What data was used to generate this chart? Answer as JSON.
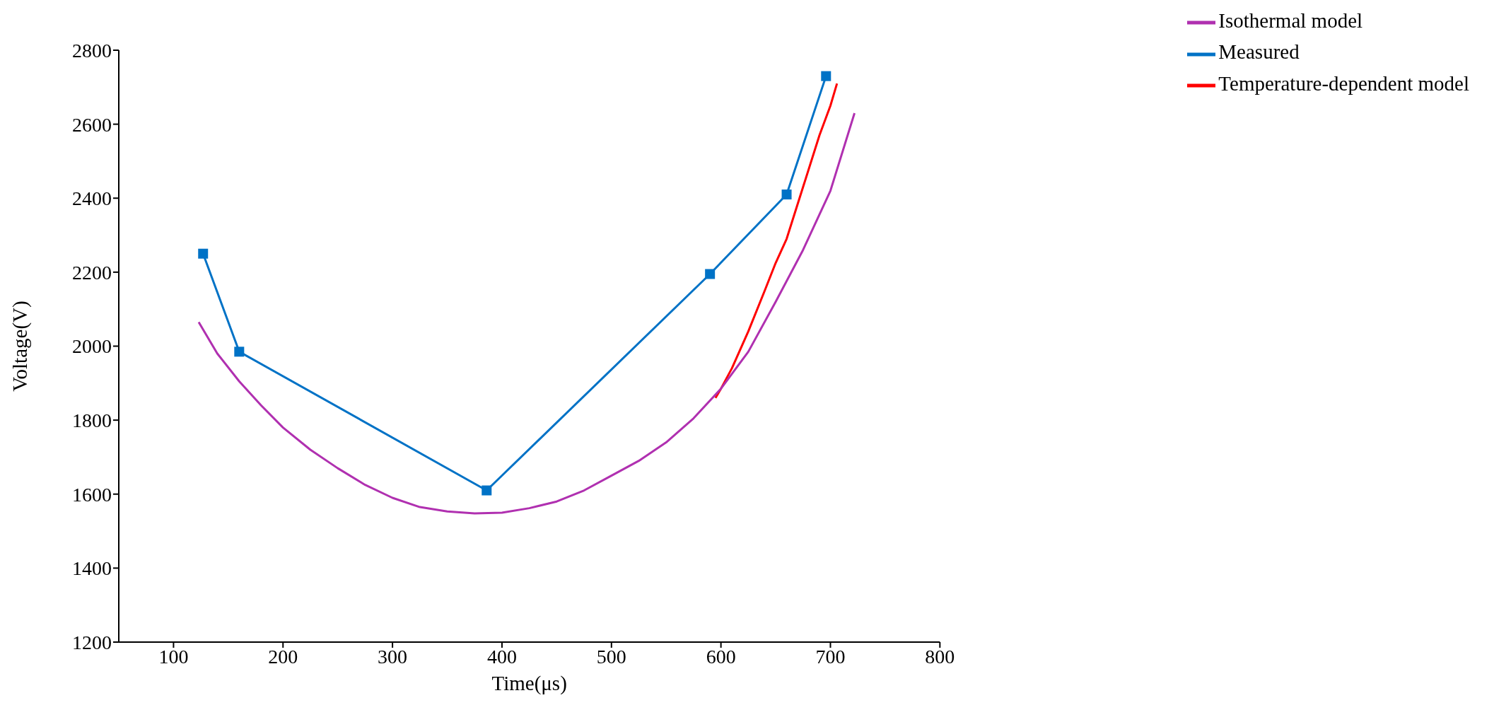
{
  "chart_data": {
    "type": "line",
    "xlabel": "Time(μs)",
    "ylabel": "Voltage(V)",
    "xlim": [
      50,
      800
    ],
    "xticks": [
      100,
      200,
      300,
      400,
      500,
      600,
      700,
      800
    ],
    "ylim": [
      1200,
      2800
    ],
    "yticks": [
      1200,
      1400,
      1600,
      1800,
      2000,
      2200,
      2400,
      2600,
      2800
    ],
    "grid": false,
    "legend": "top right",
    "line_style": "solid",
    "series": [
      {
        "name": "Measured",
        "color": "#0072c6",
        "marker": "square",
        "x": [
          127,
          160,
          386,
          590,
          660,
          696
        ],
        "values": [
          2250,
          1985,
          1610,
          2195,
          2410,
          2730
        ]
      },
      {
        "name": "Temperature-dependent model",
        "color": "#ff0000",
        "marker": "none",
        "x": [
          595,
          600,
          610,
          625,
          640,
          650,
          660,
          675,
          690,
          700,
          706
        ],
        "values": [
          1860,
          1885,
          1940,
          2040,
          2150,
          2225,
          2290,
          2430,
          2570,
          2650,
          2710
        ]
      },
      {
        "name": "Isothermal model",
        "color": "#b030b0",
        "marker": "none",
        "x": [
          123,
          140,
          160,
          180,
          200,
          225,
          250,
          275,
          300,
          325,
          350,
          375,
          400,
          425,
          450,
          475,
          500,
          525,
          550,
          575,
          600,
          625,
          650,
          675,
          700,
          722
        ],
        "values": [
          2065,
          1980,
          1905,
          1840,
          1780,
          1720,
          1670,
          1625,
          1590,
          1565,
          1553,
          1548,
          1550,
          1562,
          1580,
          1610,
          1650,
          1690,
          1740,
          1805,
          1885,
          1985,
          2120,
          2260,
          2420,
          2630
        ]
      }
    ]
  }
}
